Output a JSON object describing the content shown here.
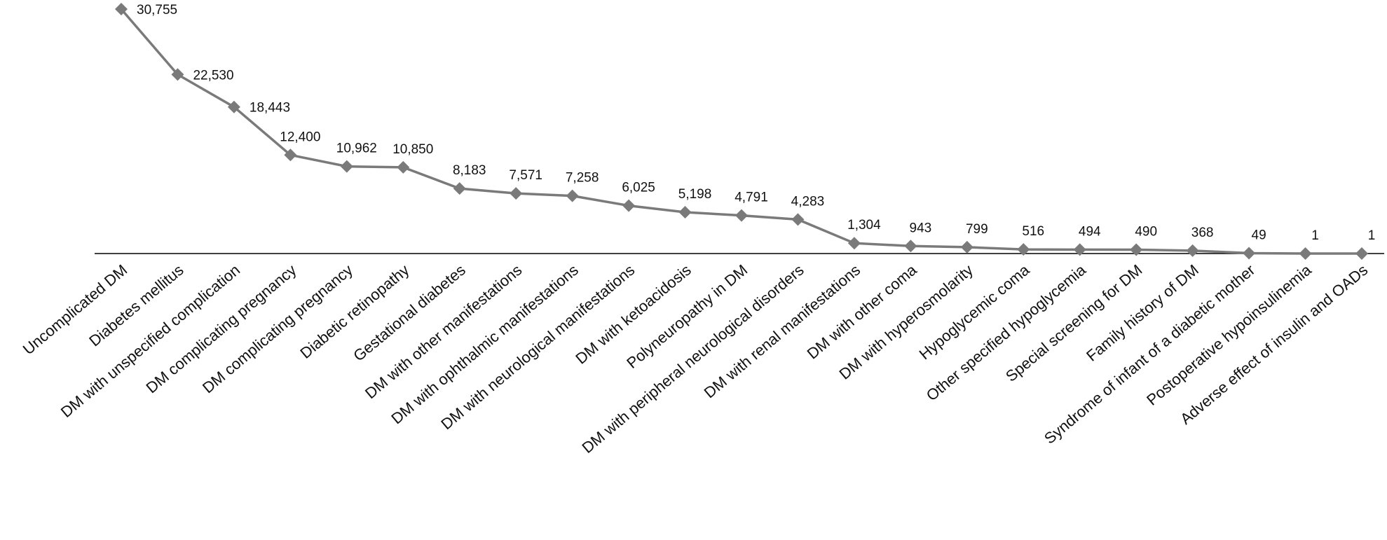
{
  "chart_data": {
    "type": "line",
    "categories": [
      "Uncomplicated DM",
      "Diabetes mellitus",
      "DM with unspecified complication",
      "DM complicating pregnancy",
      "DM complicating pregnancy",
      "Diabetic retinopathy",
      "Gestational diabetes",
      "DM with other manifestations",
      "DM with ophthalmic manifestations",
      "DM with neurological manifestations",
      "DM with ketoacidosis",
      "Polyneuropathy in DM",
      "DM with peripheral neurological disorders",
      "DM with renal manifestations",
      "DM with other coma",
      "DM with hyperosmolarity",
      "Hypoglycemic coma",
      "Other specified hypoglycemia",
      "Special screening for DM",
      "Family history of DM",
      "Syndrome of infant of a diabetic mother",
      "Postoperative hypoinsulinemia",
      "Adverse effect of insulin and OADs"
    ],
    "values": [
      30755,
      22530,
      18443,
      12400,
      10962,
      10850,
      8183,
      7571,
      7258,
      6025,
      5198,
      4791,
      4283,
      1304,
      943,
      799,
      516,
      494,
      490,
      368,
      49,
      1,
      1
    ],
    "value_labels": [
      "30,755",
      "22,530",
      "18,443",
      "12,400",
      "10,962",
      "10,850",
      "8,183",
      "7,571",
      "7,258",
      "6,025",
      "5,198",
      "4,791",
      "4,283",
      "1,304",
      "943",
      "799",
      "516",
      "494",
      "490",
      "368",
      "49",
      "1",
      "1"
    ],
    "color": "#7a7a7a"
  }
}
